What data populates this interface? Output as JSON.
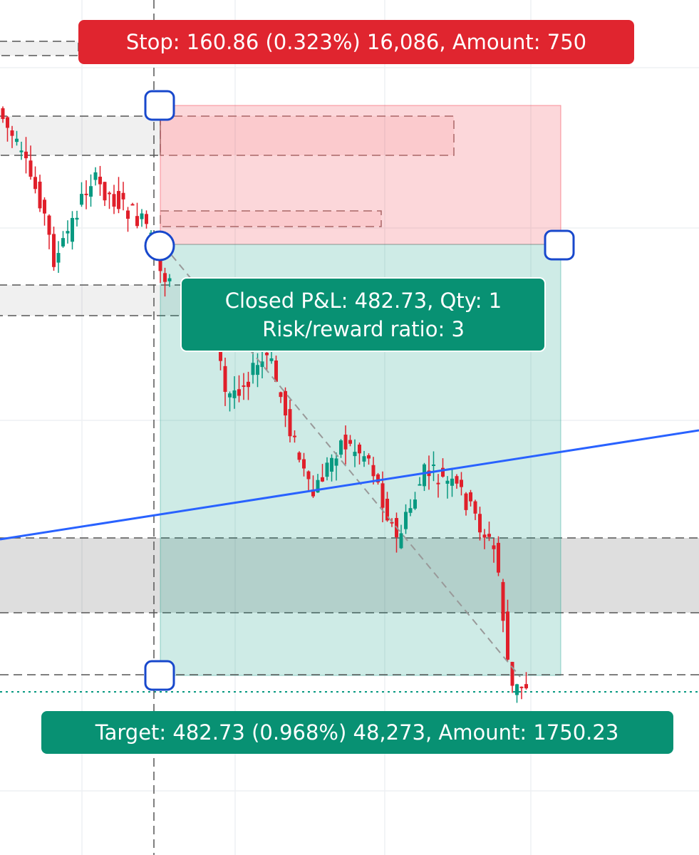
{
  "stop_label": "Stop: 160.86 (0.323%) 16,086, Amount: 750",
  "position_label": {
    "lines": [
      "Closed P&L: 482.73, Qty: 1",
      "Risk/reward ratio: 3"
    ]
  },
  "target_label": "Target: 482.73 (0.968%) 48,273, Amount: 1750.23"
}
